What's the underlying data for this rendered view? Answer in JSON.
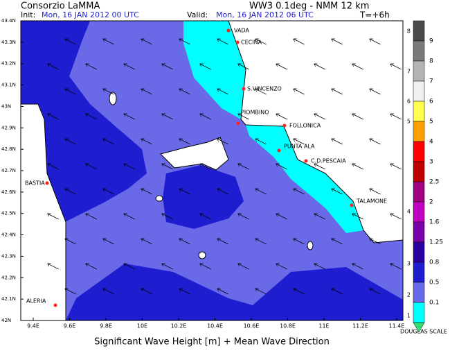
{
  "header": {
    "institute": "Consorzio LaMMA",
    "model": "WW3 0.1deg - NMM 12 km",
    "init_label": "Init:",
    "init": "Mon, 16 JAN 2012  00 UTC",
    "valid_label": "Valid:",
    "valid": "Mon, 16 JAN 2012  06 UTC",
    "lead": "T=+6h"
  },
  "lat_labels": [
    "43.4N",
    "43.3N",
    "43.2N",
    "43.1N",
    "43N",
    "42.9N",
    "42.8N",
    "42.7N",
    "42.6N",
    "42.5N",
    "42.4N",
    "42.3N",
    "42.2N",
    "42.1N",
    "42N"
  ],
  "lon_labels": [
    "9.4E",
    "9.6E",
    "9.8E",
    "10E",
    "10.2E",
    "10.4E",
    "10.6E",
    "10.8E",
    "11E",
    "11.2E",
    "11.4E"
  ],
  "places": [
    "VADA",
    "CECINA",
    "S.VINCENZO",
    "PIOMBINO",
    "FOLLONICA",
    "PUNTA ALA",
    "C.D.PESCAIA",
    "TALAMONE",
    "BASTIA",
    "ALERIA"
  ],
  "caption": "Significant Wave Height [m] + Mean Wave Direction",
  "legend": {
    "heights": [
      "9",
      "8",
      "7",
      "6",
      "5",
      "4",
      "3",
      "2.5",
      "2",
      "1.6",
      "1.25",
      "0.8",
      "0.5",
      "0.1"
    ],
    "douglas": [
      "8",
      "7",
      "6",
      "5",
      "4",
      "3",
      "2",
      "1"
    ],
    "scale_title": "DOUGLAS SCALE"
  }
}
